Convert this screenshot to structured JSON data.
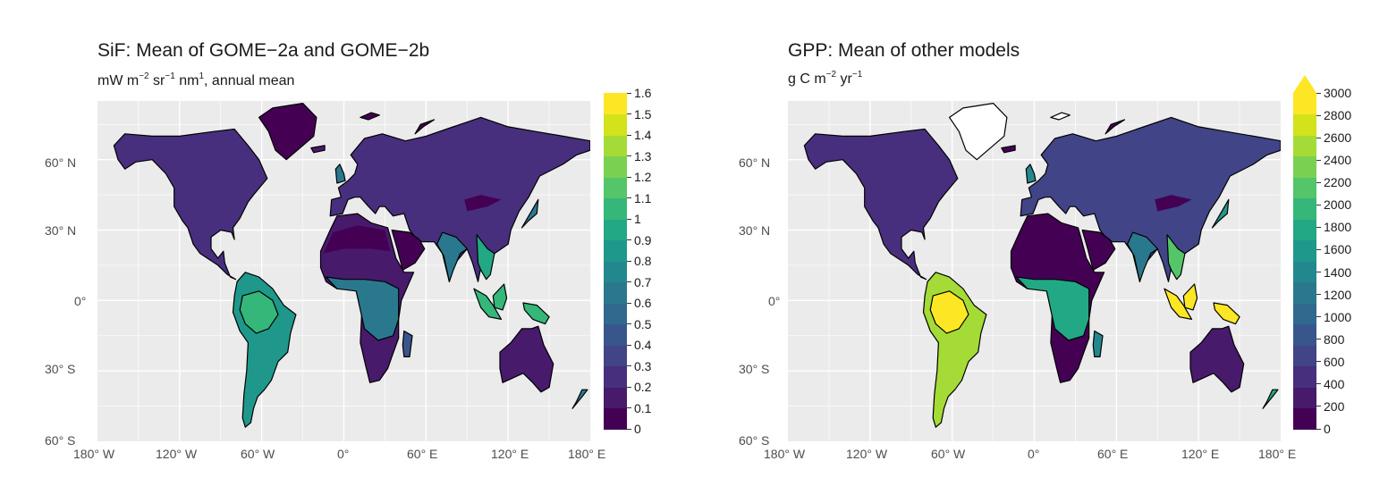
{
  "panels": [
    {
      "title": "SiF: Mean of GOME−2a and GOME−2b",
      "subtitle_main": "mW m",
      "subtitle_sup1": "−2",
      "subtitle_mid1": " sr",
      "subtitle_sup2": "−1",
      "subtitle_mid2": " nm",
      "subtitle_sup3": "1",
      "subtitle_end": ", annual mean",
      "legend_ticks": [
        "1.6",
        "1.5",
        "1.4",
        "1.3",
        "1.2",
        "1.1",
        "1",
        "0.9",
        "0.8",
        "0.7",
        "0.6",
        "0.5",
        "0.4",
        "0.3",
        "0.2",
        "0.1",
        "0"
      ],
      "legend_range": [
        0,
        1.6
      ],
      "legend_arrow": false
    },
    {
      "title": "GPP: Mean of other models",
      "subtitle_main": "g C m",
      "subtitle_sup1": "−2",
      "subtitle_mid1": " yr",
      "subtitle_sup2": "−1",
      "subtitle_mid2": "",
      "subtitle_sup3": "",
      "subtitle_end": "",
      "legend_ticks": [
        "3000",
        "2800",
        "2600",
        "2400",
        "2200",
        "2000",
        "1800",
        "1600",
        "1400",
        "1200",
        "1000",
        "800",
        "600",
        "400",
        "200",
        "0"
      ],
      "legend_range": [
        0,
        3000
      ],
      "legend_arrow": true
    }
  ],
  "axes": {
    "y_labels": [
      "60° N",
      "30° N",
      "0°",
      "30° S",
      "60° S"
    ],
    "x_labels": [
      "180° W",
      "120° W",
      "60° W",
      "0°",
      "60° E",
      "120° E",
      "180° E"
    ]
  },
  "colors": {
    "panel_background": "#ebebeb",
    "gridline": "#ffffff",
    "viridis": [
      "#440154",
      "#481a6c",
      "#472f7d",
      "#414487",
      "#39568c",
      "#31688e",
      "#2a788e",
      "#23888e",
      "#1f988b",
      "#22a884",
      "#35b779",
      "#54c568",
      "#7ad151",
      "#a5db36",
      "#d2e21b",
      "#fde725"
    ]
  }
}
